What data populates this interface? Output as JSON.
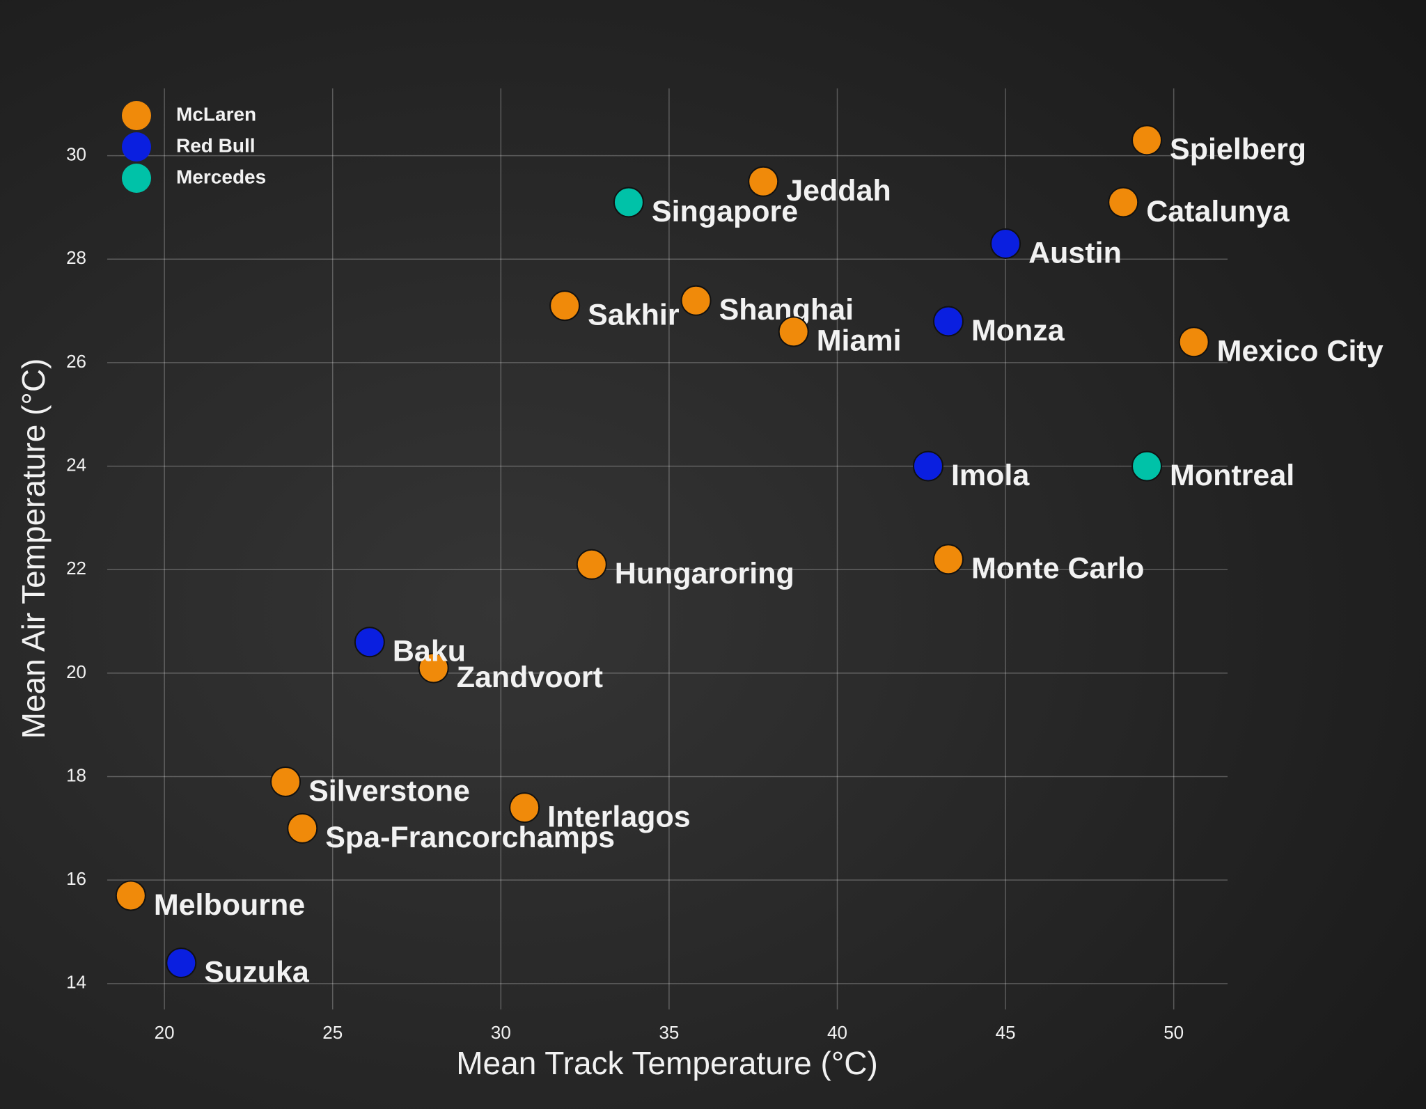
{
  "chart_data": {
    "type": "scatter",
    "x_label": "Mean Track Temperature (°C)",
    "y_label": "Mean Air Temperature (°C)",
    "xlim": [
      18.3,
      51.6
    ],
    "ylim": [
      13.5,
      31.3
    ],
    "xticks": [
      20,
      25,
      30,
      35,
      40,
      45,
      50
    ],
    "yticks": [
      14,
      16,
      18,
      20,
      22,
      24,
      26,
      28,
      30
    ],
    "grid": true,
    "legend": "upper left",
    "series": [
      {
        "name": "McLaren",
        "color": "#f08a0a",
        "labels": [
          "Spielberg",
          "Jeddah",
          "Catalunya",
          "Sakhir",
          "Shanghai",
          "Miami",
          "Mexico City",
          "Hungaroring",
          "Monte Carlo",
          "Zandvoort",
          "Silverstone",
          "Interlagos",
          "Spa-Francorchamps",
          "Melbourne"
        ],
        "x": [
          49.2,
          37.8,
          48.5,
          31.9,
          35.8,
          38.7,
          50.6,
          32.7,
          43.3,
          28.0,
          23.6,
          30.7,
          24.1,
          19.0
        ],
        "y": [
          30.3,
          29.5,
          29.1,
          27.1,
          27.2,
          26.6,
          26.4,
          22.1,
          22.2,
          20.1,
          17.9,
          17.4,
          17.0,
          15.7
        ]
      },
      {
        "name": "Red Bull",
        "color": "#0a1fe0",
        "labels": [
          "Austin",
          "Monza",
          "Imola",
          "Baku",
          "Suzuka"
        ],
        "x": [
          45.0,
          43.3,
          42.7,
          26.1,
          20.5
        ],
        "y": [
          28.3,
          26.8,
          24.0,
          20.6,
          14.4
        ]
      },
      {
        "name": "Mercedes",
        "color": "#00c2a8",
        "labels": [
          "Singapore",
          "Montreal"
        ],
        "x": [
          33.8,
          49.2
        ],
        "y": [
          29.1,
          24.0
        ]
      }
    ]
  }
}
